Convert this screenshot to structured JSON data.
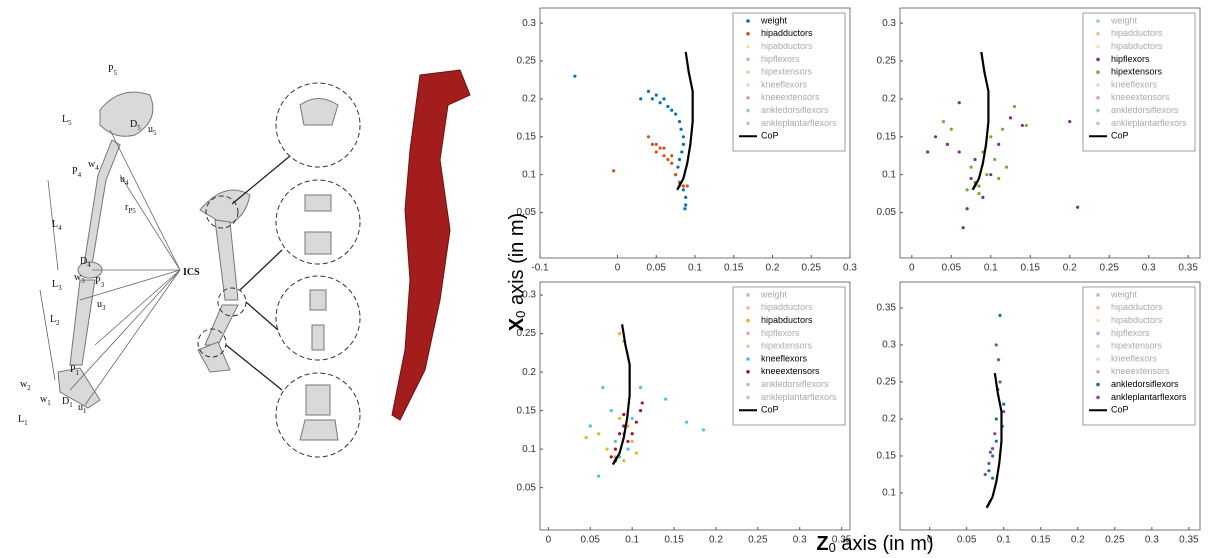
{
  "figure": {
    "ylabel": {
      "symbol": "X",
      "sub": "0",
      "text": " axis (in m)"
    },
    "xlabel": {
      "symbol": "Z",
      "sub": "0",
      "text": " axis (in m)"
    },
    "illustration_labels": [
      {
        "main": "P",
        "sub": "5"
      },
      {
        "main": "L",
        "sub": "5"
      },
      {
        "main": "D",
        "sub": "5"
      },
      {
        "main": "u",
        "sub": "5"
      },
      {
        "main": "w",
        "sub": "4"
      },
      {
        "main": "P",
        "sub": "4"
      },
      {
        "main": "u",
        "sub": "4"
      },
      {
        "main": "r",
        "sub": "P5"
      },
      {
        "main": "L",
        "sub": "4"
      },
      {
        "main": "D",
        "sub": "4"
      },
      {
        "main": "w",
        "sub": "3"
      },
      {
        "main": "P",
        "sub": "3"
      },
      {
        "main": "ICS"
      },
      {
        "main": "L",
        "sub": "3"
      },
      {
        "main": "u",
        "sub": "3"
      },
      {
        "main": "L",
        "sub": "2"
      },
      {
        "main": "w",
        "sub": "2"
      },
      {
        "main": "P",
        "sub": "1"
      },
      {
        "main": "D",
        "sub": "1"
      },
      {
        "main": "u",
        "sub": "1"
      },
      {
        "main": "w",
        "sub": "1"
      },
      {
        "main": "L",
        "sub": "1"
      }
    ]
  },
  "chart_data": [
    {
      "type": "scatter",
      "xlim": [
        -0.1,
        0.3
      ],
      "ylim": [
        -0.01,
        0.32
      ],
      "xticks": [
        -0.1,
        0,
        0.05,
        0.1,
        0.15,
        0.2,
        0.25,
        0.3
      ],
      "yticks": [
        0.05,
        0.1,
        0.15,
        0.2,
        0.25,
        0.3
      ],
      "legend": "upper right",
      "series": [
        {
          "name": "weight",
          "color": "#0072bd",
          "highlighted": true,
          "mode": "markers",
          "x": [
            -0.055,
            0.03,
            0.04,
            0.045,
            0.05,
            0.055,
            0.06,
            0.065,
            0.07,
            0.075,
            0.08,
            0.082,
            0.085,
            0.085,
            0.083,
            0.08,
            0.078,
            0.075,
            0.08,
            0.085,
            0.088,
            0.088,
            0.087
          ],
          "values": [
            0.23,
            0.2,
            0.21,
            0.2,
            0.205,
            0.195,
            0.2,
            0.19,
            0.185,
            0.18,
            0.17,
            0.16,
            0.15,
            0.14,
            0.13,
            0.12,
            0.11,
            0.1,
            0.09,
            0.08,
            0.07,
            0.06,
            0.055
          ]
        },
        {
          "name": "hipadductors",
          "color": "#d95319",
          "highlighted": true,
          "mode": "markers",
          "x": [
            -0.005,
            0.04,
            0.045,
            0.05,
            0.05,
            0.055,
            0.06,
            0.06,
            0.065,
            0.07,
            0.07,
            0.075,
            0.08,
            0.085,
            0.09
          ],
          "values": [
            0.105,
            0.15,
            0.14,
            0.13,
            0.14,
            0.135,
            0.125,
            0.135,
            0.12,
            0.115,
            0.125,
            0.1,
            0.09,
            0.085,
            0.085
          ]
        },
        {
          "name": "hipabductors",
          "color": "#edb120",
          "highlighted": false,
          "mode": "markers",
          "x": [],
          "values": []
        },
        {
          "name": "hipflexors",
          "color": "#7e2f8e",
          "highlighted": false,
          "mode": "markers",
          "x": [],
          "values": []
        },
        {
          "name": "hipextensors",
          "color": "#77ac30",
          "highlighted": false,
          "mode": "markers",
          "x": [],
          "values": []
        },
        {
          "name": "kneeflexors",
          "color": "#4dbeee",
          "highlighted": false,
          "mode": "markers",
          "x": [],
          "values": []
        },
        {
          "name": "kneeextensors",
          "color": "#a2142f",
          "highlighted": false,
          "mode": "markers",
          "x": [],
          "values": []
        },
        {
          "name": "ankledorsiflexors",
          "color": "#1d6f8f",
          "highlighted": false,
          "mode": "markers",
          "x": [],
          "values": []
        },
        {
          "name": "ankleplantarflexors",
          "color": "#7b4f9e",
          "highlighted": false,
          "mode": "markers",
          "x": [],
          "values": []
        },
        {
          "name": "CoP",
          "color": "#000000",
          "highlighted": true,
          "mode": "line",
          "x": [
            0.088,
            0.092,
            0.097,
            0.097,
            0.094,
            0.09,
            0.085,
            0.08,
            0.077,
            0.082
          ],
          "values": [
            0.262,
            0.235,
            0.21,
            0.17,
            0.14,
            0.115,
            0.095,
            0.085,
            0.08,
            0.09
          ]
        }
      ]
    },
    {
      "type": "scatter",
      "xlim": [
        -0.015,
        0.365
      ],
      "ylim": [
        -0.01,
        0.32
      ],
      "xticks": [
        0,
        0.05,
        0.1,
        0.15,
        0.2,
        0.25,
        0.3,
        0.35
      ],
      "yticks": [
        0.05,
        0.1,
        0.15,
        0.2,
        0.25,
        0.3
      ],
      "legend": "upper right",
      "series": [
        {
          "name": "weight",
          "color": "#0072bd",
          "highlighted": false,
          "mode": "markers",
          "x": [],
          "values": []
        },
        {
          "name": "hipadductors",
          "color": "#d95319",
          "highlighted": false,
          "mode": "markers",
          "x": [],
          "values": []
        },
        {
          "name": "hipabductors",
          "color": "#edb120",
          "highlighted": false,
          "mode": "markers",
          "x": [],
          "values": []
        },
        {
          "name": "hipflexors",
          "color": "#7e2f8e",
          "highlighted": true,
          "mode": "markers",
          "x": [
            0.02,
            0.03,
            0.045,
            0.06,
            0.065,
            0.07,
            0.075,
            0.08,
            0.09,
            0.1,
            0.11,
            0.125,
            0.14,
            0.2,
            0.21,
            0.06
          ],
          "values": [
            0.13,
            0.15,
            0.14,
            0.195,
            0.03,
            0.055,
            0.095,
            0.12,
            0.07,
            0.1,
            0.14,
            0.175,
            0.165,
            0.17,
            0.057,
            0.13
          ]
        },
        {
          "name": "hipextensors",
          "color": "#77ac30",
          "highlighted": true,
          "mode": "markers",
          "x": [
            0.04,
            0.05,
            0.07,
            0.075,
            0.08,
            0.085,
            0.09,
            0.095,
            0.1,
            0.105,
            0.11,
            0.115,
            0.12,
            0.13,
            0.145,
            0.085
          ],
          "values": [
            0.17,
            0.16,
            0.08,
            0.11,
            0.09,
            0.085,
            0.13,
            0.1,
            0.15,
            0.12,
            0.095,
            0.16,
            0.11,
            0.19,
            0.165,
            0.075
          ]
        },
        {
          "name": "kneeflexors",
          "color": "#4dbeee",
          "highlighted": false,
          "mode": "markers",
          "x": [],
          "values": []
        },
        {
          "name": "kneeextensors",
          "color": "#a2142f",
          "highlighted": false,
          "mode": "markers",
          "x": [],
          "values": []
        },
        {
          "name": "ankledorsiflexors",
          "color": "#1d6f8f",
          "highlighted": false,
          "mode": "markers",
          "x": [],
          "values": []
        },
        {
          "name": "ankleplantarflexors",
          "color": "#7b4f9e",
          "highlighted": false,
          "mode": "markers",
          "x": [],
          "values": []
        },
        {
          "name": "CoP",
          "color": "#000000",
          "highlighted": true,
          "mode": "line",
          "x": [
            0.088,
            0.092,
            0.097,
            0.097,
            0.094,
            0.09,
            0.085,
            0.08,
            0.077,
            0.082
          ],
          "values": [
            0.262,
            0.235,
            0.21,
            0.17,
            0.14,
            0.115,
            0.095,
            0.085,
            0.08,
            0.09
          ]
        }
      ]
    },
    {
      "type": "scatter",
      "xlim": [
        -0.01,
        0.36
      ],
      "ylim": [
        -0.005,
        0.317
      ],
      "xticks": [
        0,
        0.05,
        0.1,
        0.15,
        0.2,
        0.25,
        0.3,
        0.35
      ],
      "yticks": [
        0.05,
        0.1,
        0.15,
        0.2,
        0.25,
        0.3
      ],
      "legend": "upper right",
      "series": [
        {
          "name": "weight",
          "color": "#0072bd",
          "highlighted": false,
          "mode": "markers",
          "x": [],
          "values": []
        },
        {
          "name": "hipadductors",
          "color": "#d95319",
          "highlighted": false,
          "mode": "markers",
          "x": [],
          "values": []
        },
        {
          "name": "hipabductors",
          "color": "#edb120",
          "highlighted": true,
          "mode": "markers",
          "x": [
            0.045,
            0.06,
            0.07,
            0.08,
            0.085,
            0.09,
            0.095,
            0.1,
            0.105,
            0.09,
            0.085
          ],
          "values": [
            0.115,
            0.12,
            0.1,
            0.09,
            0.25,
            0.24,
            0.13,
            0.11,
            0.095,
            0.085,
            0.14
          ]
        },
        {
          "name": "hipflexors",
          "color": "#7e2f8e",
          "highlighted": false,
          "mode": "markers",
          "x": [],
          "values": []
        },
        {
          "name": "hipextensors",
          "color": "#77ac30",
          "highlighted": false,
          "mode": "markers",
          "x": [],
          "values": []
        },
        {
          "name": "kneeflexors",
          "color": "#4dbeee",
          "highlighted": true,
          "mode": "markers",
          "x": [
            0.05,
            0.06,
            0.065,
            0.075,
            0.08,
            0.09,
            0.1,
            0.11,
            0.14,
            0.165,
            0.185,
            0.095,
            0.085
          ],
          "values": [
            0.13,
            0.065,
            0.18,
            0.15,
            0.11,
            0.12,
            0.14,
            0.18,
            0.165,
            0.135,
            0.125,
            0.1,
            0.09
          ]
        },
        {
          "name": "kneeextensors",
          "color": "#a2142f",
          "highlighted": true,
          "mode": "markers",
          "x": [
            0.075,
            0.08,
            0.085,
            0.09,
            0.095,
            0.1,
            0.105,
            0.11,
            0.112,
            0.09,
            0.08
          ],
          "values": [
            0.09,
            0.1,
            0.12,
            0.13,
            0.11,
            0.12,
            0.135,
            0.15,
            0.16,
            0.145,
            0.085
          ]
        },
        {
          "name": "ankledorsiflexors",
          "color": "#1d6f8f",
          "highlighted": false,
          "mode": "markers",
          "x": [],
          "values": []
        },
        {
          "name": "ankleplantarflexors",
          "color": "#7b4f9e",
          "highlighted": false,
          "mode": "markers",
          "x": [],
          "values": []
        },
        {
          "name": "CoP",
          "color": "#000000",
          "highlighted": true,
          "mode": "line",
          "x": [
            0.088,
            0.092,
            0.097,
            0.097,
            0.094,
            0.09,
            0.085,
            0.08,
            0.077,
            0.082
          ],
          "values": [
            0.262,
            0.235,
            0.21,
            0.17,
            0.14,
            0.115,
            0.095,
            0.085,
            0.08,
            0.09
          ]
        }
      ]
    },
    {
      "type": "scatter",
      "xlim": [
        -0.04,
        0.365
      ],
      "ylim": [
        0.05,
        0.385
      ],
      "xticks": [
        0,
        0.05,
        0.1,
        0.15,
        0.2,
        0.25,
        0.3,
        0.35
      ],
      "yticks": [
        0.1,
        0.15,
        0.2,
        0.25,
        0.3,
        0.35
      ],
      "legend": "upper right",
      "series": [
        {
          "name": "weight",
          "color": "#0072bd",
          "highlighted": false,
          "mode": "markers",
          "x": [],
          "values": []
        },
        {
          "name": "hipadductors",
          "color": "#d95319",
          "highlighted": false,
          "mode": "markers",
          "x": [],
          "values": []
        },
        {
          "name": "hipabductors",
          "color": "#edb120",
          "highlighted": false,
          "mode": "markers",
          "x": [],
          "values": []
        },
        {
          "name": "hipflexors",
          "color": "#7e2f8e",
          "highlighted": false,
          "mode": "markers",
          "x": [],
          "values": []
        },
        {
          "name": "hipextensors",
          "color": "#77ac30",
          "highlighted": false,
          "mode": "markers",
          "x": [],
          "values": []
        },
        {
          "name": "kneeflexors",
          "color": "#4dbeee",
          "highlighted": false,
          "mode": "markers",
          "x": [],
          "values": []
        },
        {
          "name": "kneeextensors",
          "color": "#a2142f",
          "highlighted": false,
          "mode": "markers",
          "x": [],
          "values": []
        },
        {
          "name": "ankledorsiflexors",
          "color": "#1d6f8f",
          "highlighted": true,
          "mode": "markers",
          "x": [
            0.08,
            0.085,
            0.09,
            0.092,
            0.095,
            0.1,
            0.098,
            0.09,
            0.085
          ],
          "values": [
            0.13,
            0.15,
            0.2,
            0.24,
            0.34,
            0.22,
            0.19,
            0.17,
            0.12
          ]
        },
        {
          "name": "ankleplantarflexors",
          "color": "#7b4f9e",
          "highlighted": true,
          "mode": "markers",
          "x": [
            0.075,
            0.08,
            0.085,
            0.09,
            0.093,
            0.095,
            0.1,
            0.088,
            0.082
          ],
          "values": [
            0.125,
            0.14,
            0.16,
            0.3,
            0.28,
            0.25,
            0.21,
            0.18,
            0.155
          ]
        },
        {
          "name": "CoP",
          "color": "#000000",
          "highlighted": true,
          "mode": "line",
          "x": [
            0.088,
            0.092,
            0.097,
            0.097,
            0.094,
            0.09,
            0.085,
            0.08,
            0.077,
            0.082
          ],
          "values": [
            0.262,
            0.235,
            0.21,
            0.17,
            0.14,
            0.115,
            0.095,
            0.085,
            0.08,
            0.09
          ]
        }
      ]
    }
  ]
}
